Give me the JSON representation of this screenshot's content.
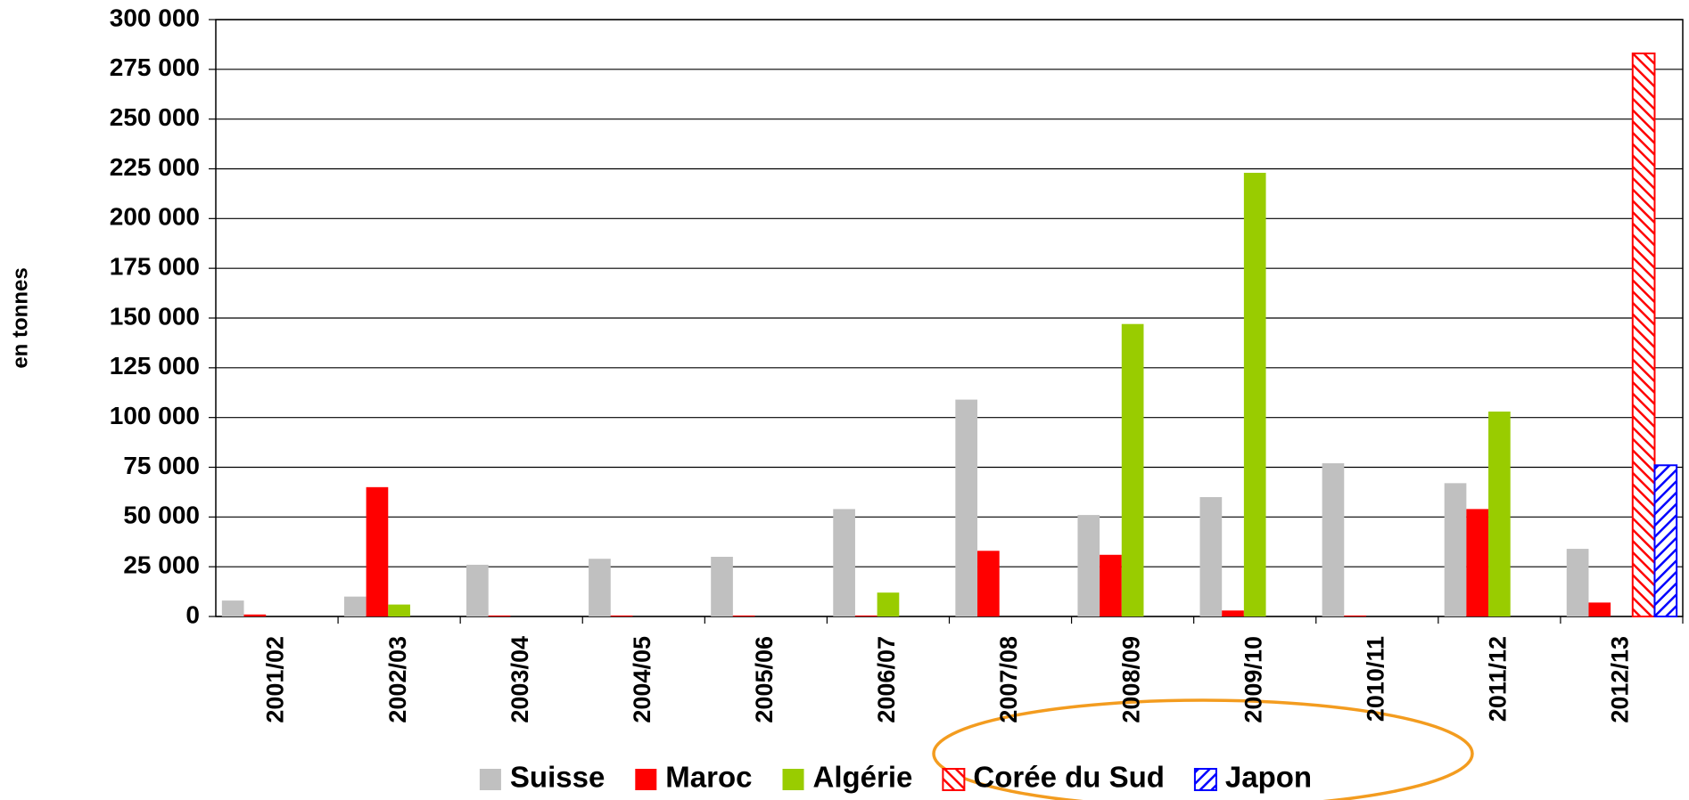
{
  "chart_data": {
    "type": "bar",
    "y_label": "en tonnes",
    "categories": [
      "2001/02",
      "2002/03",
      "2003/04",
      "2004/05",
      "2005/06",
      "2006/07",
      "2007/08",
      "2008/09",
      "2009/10",
      "2010/11",
      "2011/12",
      "2012/13"
    ],
    "series": [
      {
        "name": "Suisse",
        "color": "#c0c0c0",
        "hatch": false,
        "values": [
          8000,
          10000,
          26000,
          29000,
          30000,
          54000,
          109000,
          51000,
          60000,
          77000,
          67000,
          34000
        ]
      },
      {
        "name": "Maroc",
        "color": "#ff0000",
        "hatch": false,
        "values": [
          1000,
          65000,
          500,
          500,
          500,
          500,
          33000,
          31000,
          3000,
          500,
          54000,
          7000
        ]
      },
      {
        "name": "Algérie",
        "color": "#99cc00",
        "hatch": false,
        "values": [
          0,
          6000,
          0,
          0,
          0,
          12000,
          0,
          147000,
          223000,
          0,
          103000,
          0
        ]
      },
      {
        "name": "Corée du Sud",
        "color": "#ff0000",
        "hatch": true,
        "values": [
          null,
          null,
          null,
          null,
          null,
          null,
          null,
          null,
          null,
          null,
          null,
          283000
        ]
      },
      {
        "name": "Japon",
        "color": "#0000ff",
        "hatch": true,
        "values": [
          null,
          null,
          null,
          null,
          null,
          null,
          null,
          null,
          null,
          null,
          null,
          76000
        ]
      }
    ],
    "ylim": [
      0,
      300000
    ],
    "yticks": [
      {
        "value": 0,
        "label": "0"
      },
      {
        "value": 25000,
        "label": "25 000"
      },
      {
        "value": 50000,
        "label": "50 000"
      },
      {
        "value": 75000,
        "label": "75 000"
      },
      {
        "value": 100000,
        "label": "100 000"
      },
      {
        "value": 125000,
        "label": "125 000"
      },
      {
        "value": 150000,
        "label": "150 000"
      },
      {
        "value": 175000,
        "label": "175 000"
      },
      {
        "value": 200000,
        "label": "200 000"
      },
      {
        "value": 225000,
        "label": "225 000"
      },
      {
        "value": 250000,
        "label": "250 000"
      },
      {
        "value": 275000,
        "label": "275 000"
      },
      {
        "value": 300000,
        "label": "300 000"
      }
    ],
    "grid": true,
    "legend": "bottom"
  }
}
